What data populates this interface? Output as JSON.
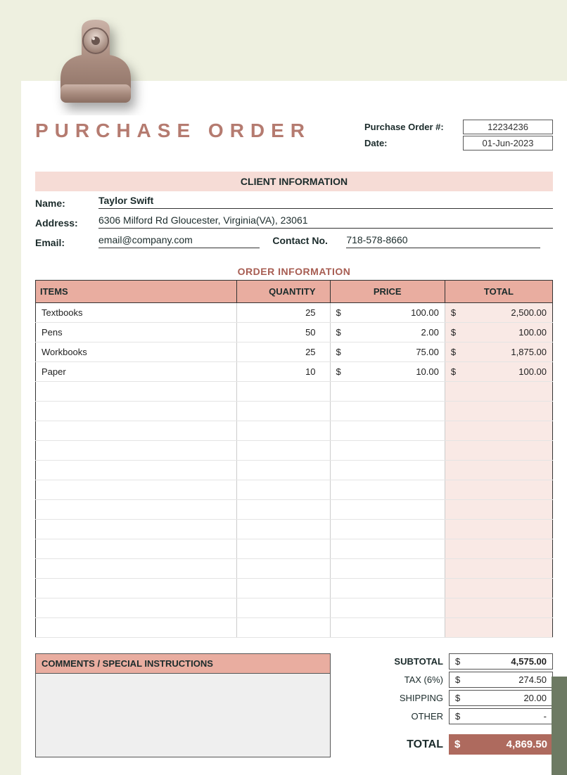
{
  "colors": {
    "page_bg": "#eef0e0",
    "paper_bg": "#ffffff",
    "title_color": "#b57b70",
    "banner_bg": "#f6dcd6",
    "table_header_bg": "#e9ada0",
    "tint_bg": "#f9e9e5",
    "total_bg": "#ae6a5e",
    "corner_accent": "#6d7a63",
    "border": "#333333"
  },
  "header": {
    "title": "PURCHASE ORDER",
    "po_number_label": "Purchase Order #:",
    "po_number": "12234236",
    "date_label": "Date:",
    "date": "01-Jun-2023"
  },
  "client": {
    "banner": "CLIENT INFORMATION",
    "name_label": "Name:",
    "name": "Taylor Swift",
    "address_label": "Address:",
    "address": "6306 Milford Rd Gloucester, Virginia(VA), 23061",
    "email_label": "Email:",
    "email": "email@company.com",
    "contact_label": "Contact No.",
    "contact": "718-578-8660"
  },
  "order": {
    "title": "ORDER INFORMATION",
    "columns": {
      "items": "ITEMS",
      "qty": "QUANTITY",
      "price": "PRICE",
      "total": "TOTAL"
    },
    "currency": "$",
    "rows": [
      {
        "item": "Textbooks",
        "qty": "25",
        "price": "100.00",
        "total": "2,500.00"
      },
      {
        "item": "Pens",
        "qty": "50",
        "price": "2.00",
        "total": "100.00"
      },
      {
        "item": "Workbooks",
        "qty": "25",
        "price": "75.00",
        "total": "1,875.00"
      },
      {
        "item": "Paper",
        "qty": "10",
        "price": "10.00",
        "total": "100.00"
      }
    ],
    "empty_rows": 13
  },
  "comments": {
    "title": "COMMENTS / SPECIAL INSTRUCTIONS",
    "text": ""
  },
  "summary": {
    "subtotal_label": "SUBTOTAL",
    "subtotal": "4,575.00",
    "tax_label": "TAX (6%)",
    "tax": "274.50",
    "shipping_label": "SHIPPING",
    "shipping": "20.00",
    "other_label": "OTHER",
    "other": "-",
    "total_label": "TOTAL",
    "total": "4,869.50",
    "currency": "$"
  }
}
